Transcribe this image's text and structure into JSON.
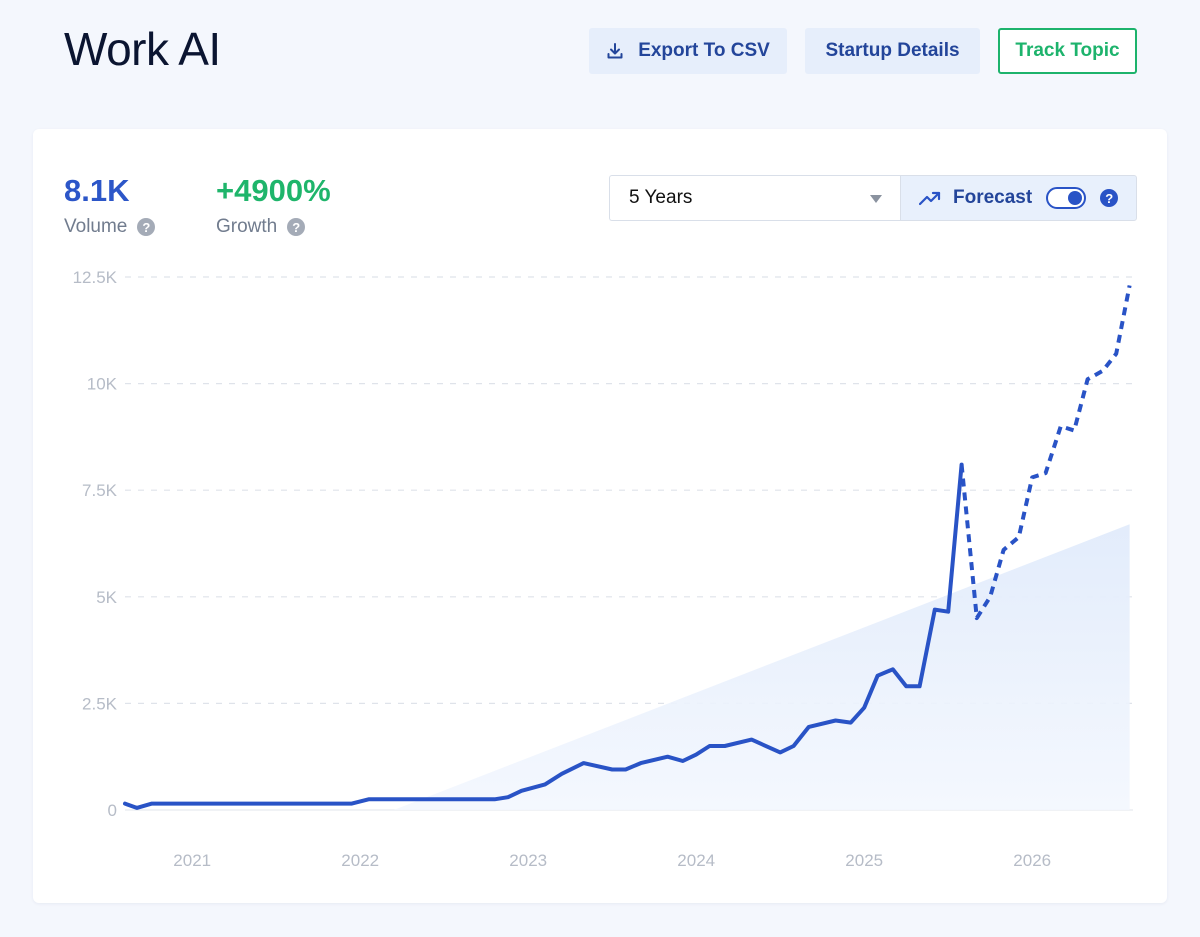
{
  "header": {
    "title": "Work AI",
    "export_label": "Export To CSV",
    "startup_label": "Startup Details",
    "track_label": "Track Topic"
  },
  "stats": {
    "volume_value": "8.1K",
    "volume_label": "Volume",
    "growth_value": "+4900%",
    "growth_label": "Growth"
  },
  "controls": {
    "range_value": "5 Years",
    "forecast_label": "Forecast",
    "forecast_on": true
  },
  "colors": {
    "line": "#2953c6",
    "trend_fill": "#e6effc",
    "growth": "#1fb56b",
    "accent": "#23459a"
  },
  "icons": {
    "export": "download-icon",
    "forecast": "trending-up-icon",
    "help": "question-circle-icon"
  },
  "chart_data": {
    "type": "line",
    "title": "",
    "xlabel": "",
    "ylabel": "",
    "xlim": [
      2020.6,
      2026.6
    ],
    "ylim": [
      0,
      12500
    ],
    "yticks": [
      0,
      2500,
      5000,
      7500,
      10000,
      12500
    ],
    "ytick_labels": [
      "0",
      "2.5K",
      "5K",
      "7.5K",
      "10K",
      "12.5K"
    ],
    "xticks": [
      2021,
      2022,
      2023,
      2024,
      2025,
      2026
    ],
    "xtick_labels": [
      "2021",
      "2022",
      "2023",
      "2024",
      "2025",
      "2026"
    ],
    "grid": true,
    "series": [
      {
        "style": "solid",
        "x": [
          2020.6,
          2020.67,
          2020.76,
          2021.0,
          2021.5,
          2021.95,
          2022.05,
          2022.5,
          2022.8,
          2022.88,
          2022.96,
          2023.1,
          2023.2,
          2023.33,
          2023.5,
          2023.58,
          2023.67,
          2023.83,
          2023.92,
          2024.0,
          2024.08,
          2024.17,
          2024.33,
          2024.5,
          2024.58,
          2024.67,
          2024.83,
          2024.92,
          2025.0,
          2025.08,
          2025.17,
          2025.25,
          2025.33,
          2025.42,
          2025.5,
          2025.58
        ],
        "y": [
          150,
          50,
          150,
          150,
          150,
          150,
          250,
          250,
          250,
          300,
          450,
          600,
          850,
          1100,
          950,
          950,
          1100,
          1250,
          1150,
          1300,
          1500,
          1500,
          1650,
          1350,
          1500,
          1950,
          2100,
          2050,
          2400,
          3150,
          3300,
          2900,
          2900,
          4700,
          4650,
          8100
        ]
      },
      {
        "style": "dashed",
        "x": [
          2025.58,
          2025.67,
          2025.75,
          2025.83,
          2025.92,
          2026.0,
          2026.08,
          2026.17,
          2026.25,
          2026.33,
          2026.42,
          2026.5,
          2026.58
        ],
        "y": [
          8100,
          4500,
          5000,
          6100,
          6400,
          7800,
          7900,
          9000,
          8900,
          10100,
          10300,
          10700,
          12300
        ]
      }
    ],
    "trend_area": {
      "x": [
        2022.2,
        2026.58
      ],
      "y": [
        0,
        6700
      ]
    }
  }
}
